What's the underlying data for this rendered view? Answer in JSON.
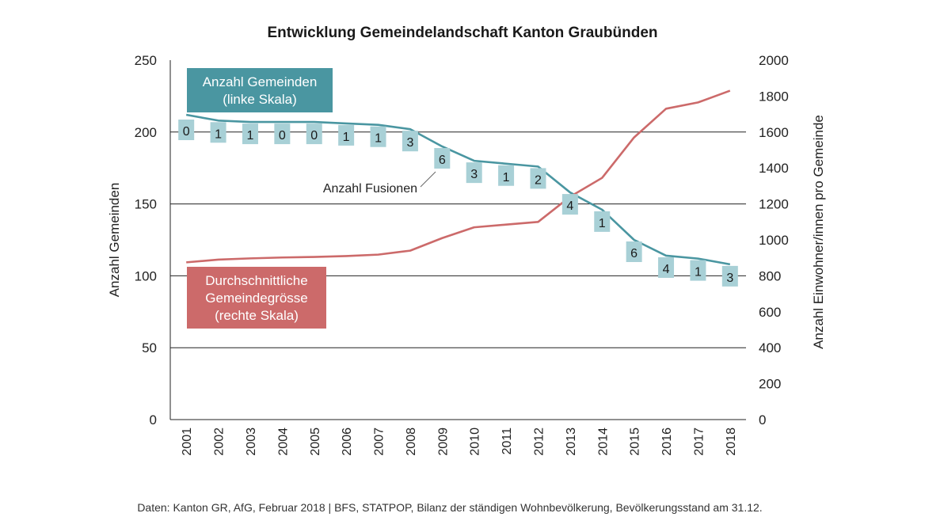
{
  "chart_data": {
    "type": "line",
    "title": "Entwicklung Gemeindelandschaft Kanton Graubünden",
    "x": [
      "2001",
      "2002",
      "2003",
      "2004",
      "2005",
      "2006",
      "2007",
      "2008",
      "2009",
      "2010",
      "2011",
      "2012",
      "2013",
      "2014",
      "2015",
      "2016",
      "2017",
      "2018"
    ],
    "ylabel_left": "Anzahl Gemeinden",
    "ylabel_right": "Anzahl Einwohner/innen pro Gemeinde",
    "ylim_left": [
      0,
      250
    ],
    "ylim_right": [
      0,
      2000
    ],
    "yticks_left": [
      "0",
      "50",
      "100",
      "150",
      "200",
      "250"
    ],
    "yticks_right": [
      "0",
      "200",
      "400",
      "600",
      "800",
      "1000",
      "1200",
      "1400",
      "1600",
      "1800",
      "2000"
    ],
    "grid": "horizontal",
    "series": [
      {
        "label_lines": [
          "Anzahl Gemeinden",
          "(linke Skala)"
        ],
        "axis": "left",
        "color": "#4a96a1",
        "values": [
          212,
          208,
          207,
          207,
          207,
          206,
          205,
          202,
          190,
          180,
          178,
          176,
          158,
          146,
          125,
          114,
          112,
          108
        ]
      },
      {
        "label_lines": [
          "Durchschnittliche",
          "Gemeindegrösse",
          "(rechte Skala)"
        ],
        "axis": "right",
        "color": "#cc6a6a",
        "values": [
          875,
          890,
          897,
          902,
          905,
          910,
          918,
          940,
          1010,
          1070,
          1085,
          1100,
          1240,
          1345,
          1570,
          1730,
          1765,
          1830
        ]
      }
    ],
    "fusions": {
      "label": "Anzahl Fusionen",
      "values": [
        "0",
        "1",
        "1",
        "0",
        "0",
        "1",
        "1",
        "3",
        "6",
        "3",
        "1",
        "2",
        "4",
        "1",
        "6",
        "4",
        "1",
        "3"
      ],
      "color": "#a8d0d6"
    },
    "footer": "Daten: Kanton GR, AfG, Februar 2018 |  BFS, STATPOP, Bilanz der ständigen Wohnbevölkerung, Bevölkerungsstand am 31.12."
  }
}
